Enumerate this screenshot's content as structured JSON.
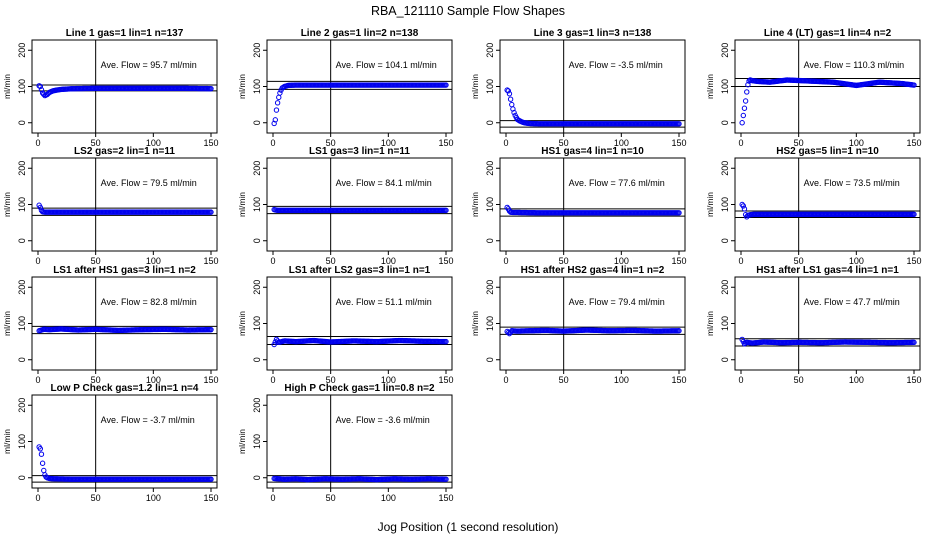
{
  "title": "RBA_121110  Sample Flow Shapes",
  "xlabel": "Jog Position (1 second resolution)",
  "colors": {
    "points": "#0000ee",
    "axes": "#000000",
    "background": "#ffffff"
  },
  "chart_data": {
    "type": "scatter",
    "layout": "4x4 grid of small-multiple scatter panels, 14 used",
    "shared": {
      "xlim": [
        0,
        150
      ],
      "ylim": [
        -20,
        220
      ],
      "xticks": [
        0,
        50,
        100,
        150
      ],
      "yticks": [
        0,
        100,
        200
      ],
      "ylabel": "ml/min",
      "vline_x": 50,
      "avg_prefix": "Ave. Flow =",
      "avg_unit": "ml/min"
    },
    "panels": [
      {
        "title": "Line 1 gas=1 lin=1 n=137",
        "avg_label": "95.7",
        "mean": 95.7,
        "band": [
          88,
          104
        ],
        "x": [
          1,
          2,
          4,
          6,
          8,
          10,
          13,
          16,
          20,
          30,
          50,
          75,
          100,
          125,
          150
        ],
        "y": [
          102,
          100,
          82,
          75,
          78,
          84,
          88,
          90,
          92,
          94,
          95,
          95,
          95,
          95,
          94
        ]
      },
      {
        "title": "Line 2 gas=1 lin=2 n=138",
        "avg_label": "104.1",
        "mean": 104.1,
        "band": [
          92,
          114
        ],
        "x": [
          1,
          2,
          3,
          4,
          5,
          6,
          7,
          8,
          10,
          13,
          20,
          50,
          100,
          150
        ],
        "y": [
          -2,
          8,
          35,
          55,
          70,
          82,
          90,
          96,
          100,
          103,
          104,
          104,
          104,
          104
        ]
      },
      {
        "title": "Line 3 gas=1 lin=3 n=138",
        "avg_label": "-3.5",
        "mean": -3.5,
        "band": [
          -12,
          6
        ],
        "x": [
          1,
          2,
          3,
          4,
          5,
          6,
          7,
          8,
          9,
          10,
          12,
          14,
          16,
          18,
          20,
          30,
          50,
          100,
          150
        ],
        "y": [
          90,
          88,
          80,
          65,
          50,
          38,
          28,
          20,
          14,
          9,
          5,
          2,
          0,
          -1,
          -2,
          -3,
          -3,
          -3,
          -3
        ]
      },
      {
        "title": "Line 4 (LT) gas=1 lin=4 n=2",
        "avg_label": "110.3",
        "mean": 110.3,
        "band": [
          100,
          122
        ],
        "x": [
          1,
          2,
          3,
          4,
          5,
          6,
          7,
          8,
          10,
          15,
          25,
          40,
          60,
          80,
          100,
          120,
          140,
          150
        ],
        "y": [
          0,
          20,
          40,
          60,
          85,
          105,
          115,
          118,
          116,
          114,
          112,
          118,
          115,
          112,
          103,
          112,
          108,
          104
        ]
      },
      {
        "title": "LS2 gas=2 lin=1 n=11",
        "avg_label": "79.5",
        "mean": 79.5,
        "band": [
          70,
          90
        ],
        "x": [
          1,
          2,
          3,
          4,
          6,
          10,
          20,
          50,
          100,
          150
        ],
        "y": [
          98,
          92,
          84,
          80,
          79,
          79,
          79,
          79,
          79,
          79
        ]
      },
      {
        "title": "LS1 gas=3 lin=1 n=11",
        "avg_label": "84.1",
        "mean": 84.1,
        "band": [
          75,
          95
        ],
        "x": [
          1,
          2,
          4,
          10,
          30,
          60,
          100,
          150
        ],
        "y": [
          86,
          85,
          84,
          84,
          84,
          84,
          84,
          84
        ]
      },
      {
        "title": "HS1 gas=4 lin=1 n=10",
        "avg_label": "77.6",
        "mean": 77.6,
        "band": [
          68,
          88
        ],
        "x": [
          1,
          2,
          3,
          4,
          6,
          10,
          30,
          60,
          100,
          150
        ],
        "y": [
          92,
          88,
          82,
          79,
          78,
          78,
          77,
          77,
          77,
          77
        ]
      },
      {
        "title": "HS2 gas=5 lin=1 n=10",
        "avg_label": "73.5",
        "mean": 73.5,
        "band": [
          64,
          82
        ],
        "x": [
          1,
          2,
          3,
          4,
          5,
          6,
          8,
          12,
          20,
          50,
          100,
          150
        ],
        "y": [
          100,
          96,
          88,
          72,
          66,
          70,
          72,
          73,
          73,
          73,
          73,
          73
        ]
      },
      {
        "title": "LS1 after HS1 gas=3 lin=1 n=2",
        "avg_label": "82.8",
        "mean": 82.8,
        "band": [
          72,
          92
        ],
        "x": [
          1,
          5,
          10,
          20,
          35,
          50,
          70,
          90,
          110,
          130,
          150
        ],
        "y": [
          80,
          84,
          83,
          85,
          82,
          84,
          81,
          83,
          84,
          82,
          83
        ]
      },
      {
        "title": "LS1 after LS2 gas=3 lin=1 n=1",
        "avg_label": "51.1",
        "mean": 51.1,
        "band": [
          42,
          64
        ],
        "x": [
          1,
          3,
          5,
          10,
          20,
          35,
          50,
          70,
          90,
          110,
          130,
          150
        ],
        "y": [
          42,
          56,
          48,
          52,
          50,
          53,
          49,
          52,
          50,
          53,
          51,
          50
        ]
      },
      {
        "title": "HS1 after HS2 gas=4 lin=1 n=2",
        "avg_label": "79.4",
        "mean": 79.4,
        "band": [
          70,
          90
        ],
        "x": [
          1,
          3,
          5,
          10,
          20,
          35,
          50,
          70,
          90,
          110,
          130,
          150
        ],
        "y": [
          78,
          72,
          80,
          79,
          80,
          81,
          79,
          82,
          80,
          81,
          79,
          80
        ]
      },
      {
        "title": "HS1 after LS1 gas=4 lin=1 n=1",
        "avg_label": "47.7",
        "mean": 47.7,
        "band": [
          38,
          58
        ],
        "x": [
          1,
          3,
          5,
          10,
          20,
          35,
          50,
          70,
          90,
          110,
          130,
          150
        ],
        "y": [
          56,
          44,
          48,
          46,
          49,
          47,
          48,
          47,
          49,
          48,
          47,
          48
        ]
      },
      {
        "title": "Low P Check gas=1.2 lin=1 n=4",
        "avg_label": "-3.7",
        "mean": -3.7,
        "band": [
          -12,
          6
        ],
        "x": [
          1,
          2,
          3,
          4,
          5,
          6,
          7,
          8,
          10,
          15,
          30,
          60,
          100,
          150
        ],
        "y": [
          85,
          80,
          65,
          40,
          20,
          8,
          2,
          0,
          -2,
          -3,
          -4,
          -4,
          -4,
          -4
        ]
      },
      {
        "title": "High P Check gas=1 lin=0.8 n=2",
        "avg_label": "-3.6",
        "mean": -3.6,
        "band": [
          -12,
          6
        ],
        "x": [
          1,
          10,
          20,
          30,
          45,
          60,
          75,
          90,
          105,
          120,
          135,
          150
        ],
        "y": [
          -2,
          -4,
          -3,
          -5,
          -3,
          -4,
          -3,
          -5,
          -3,
          -4,
          -3,
          -4
        ]
      }
    ]
  }
}
